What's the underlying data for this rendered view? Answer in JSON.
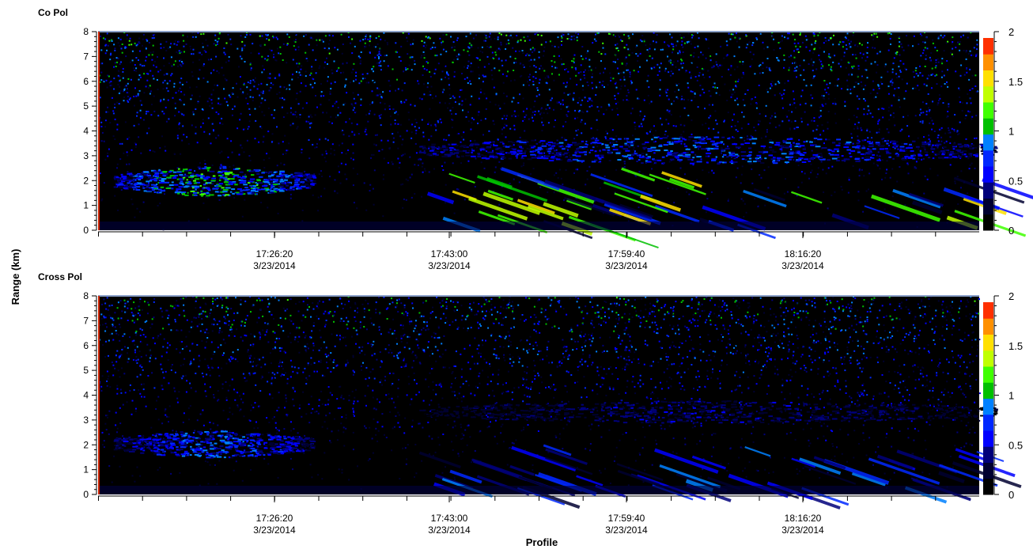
{
  "chart_data": [
    {
      "type": "heatmap",
      "title": "Co Pol",
      "ylabel": "Range (km)",
      "xlabel": "Profile",
      "ylim": [
        0,
        8
      ],
      "yticks": [
        "0",
        "1",
        "2",
        "3",
        "4",
        "5",
        "6",
        "7",
        "8"
      ],
      "xticks": [
        {
          "time": "17:26:20",
          "date": "3/23/2014"
        },
        {
          "time": "17:43:00",
          "date": "3/23/2014"
        },
        {
          "time": "17:59:40",
          "date": "3/23/2014"
        },
        {
          "time": "18:16:20",
          "date": "3/23/2014"
        }
      ],
      "colorbar": {
        "range": [
          0,
          2
        ],
        "ticks": [
          "0",
          "0.5",
          "1",
          "1.5",
          "2"
        ]
      },
      "features": [
        {
          "name": "low aerosol layer",
          "start": "17:11",
          "end": "17:30",
          "base_km": 1.4,
          "top_km": 2.6,
          "intensity": 1.35
        },
        {
          "name": "elevated layer",
          "start": "17:40",
          "end": "18:35",
          "base_km": 2.7,
          "top_km": 3.8,
          "intensity": 1.0
        },
        {
          "name": "descending streaks",
          "start": "17:40",
          "end": "18:35",
          "base_km": 0.2,
          "top_km": 2.5,
          "intensity": 0.9
        }
      ]
    },
    {
      "type": "heatmap",
      "title": "Cross Pol",
      "ylabel": "Range (km)",
      "xlabel": "Profile",
      "ylim": [
        0,
        8
      ],
      "yticks": [
        "0",
        "1",
        "2",
        "3",
        "4",
        "5",
        "6",
        "7",
        "8"
      ],
      "xticks": [
        {
          "time": "17:26:20",
          "date": "3/23/2014"
        },
        {
          "time": "17:43:00",
          "date": "3/23/2014"
        },
        {
          "time": "17:59:40",
          "date": "3/23/2014"
        },
        {
          "time": "18:16:20",
          "date": "3/23/2014"
        }
      ],
      "colorbar": {
        "range": [
          0,
          2
        ],
        "ticks": [
          "0",
          "0.5",
          "1",
          "1.5",
          "2"
        ]
      },
      "features": [
        {
          "name": "low aerosol layer",
          "start": "17:11",
          "end": "17:30",
          "base_km": 1.5,
          "top_km": 2.6,
          "intensity": 0.95
        },
        {
          "name": "elevated layer",
          "start": "17:40",
          "end": "18:35",
          "base_km": 2.9,
          "top_km": 3.8,
          "intensity": 0.55
        },
        {
          "name": "descending streaks",
          "start": "17:40",
          "end": "18:35",
          "base_km": 0.2,
          "top_km": 2.0,
          "intensity": 0.5
        }
      ]
    }
  ],
  "colors": {
    "colormap": [
      "#000000",
      "#000030",
      "#00007a",
      "#0000ff",
      "#0028ff",
      "#0080ff",
      "#00c000",
      "#40ff00",
      "#c0ff00",
      "#ffe000",
      "#ff9000",
      "#ff3000"
    ],
    "axis": "#000000",
    "plot_background": "#000000",
    "top_border": "#8aa0c8",
    "left_edge": "#cc2200"
  }
}
